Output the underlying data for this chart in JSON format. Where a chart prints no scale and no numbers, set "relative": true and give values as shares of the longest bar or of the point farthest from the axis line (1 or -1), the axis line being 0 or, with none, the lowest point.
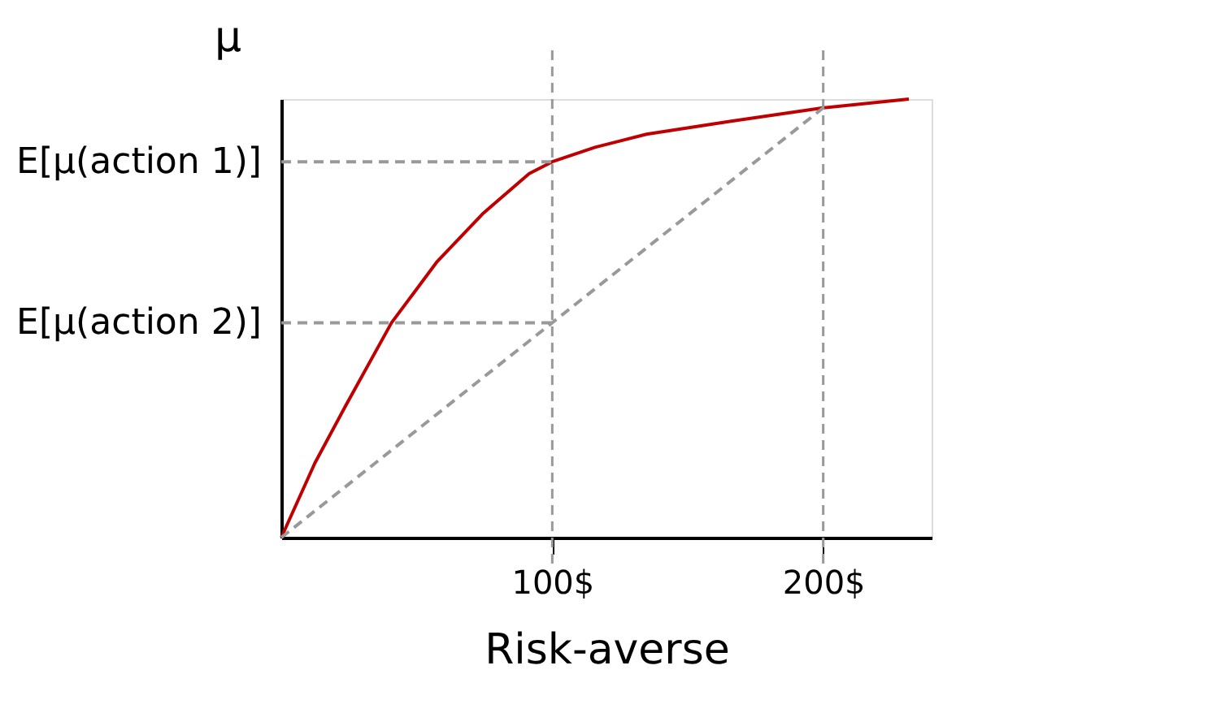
{
  "chart_data": {
    "type": "line",
    "xlabel": "Risk-averse",
    "ylabel": "μ",
    "relative": true,
    "xlim": [
      0,
      240
    ],
    "xticks": [
      {
        "value": 100,
        "label": "100$"
      },
      {
        "value": 200,
        "label": "200$"
      }
    ],
    "grid": false,
    "annotations": [
      {
        "text": "E[μ(action 1)]",
        "x": 0,
        "y": 0.857
      },
      {
        "text": "E[μ(action 2)]",
        "x": 0,
        "y": 0.49
      }
    ],
    "series": [
      {
        "color": "#c00000",
        "line_style": "solid",
        "x": [
          0,
          12.4,
          23.7,
          40.7,
          57.6,
          74.6,
          91.5,
          100,
          115.8,
          134.8,
          166.5,
          200,
          231.6
        ],
        "values": [
          0,
          0.17,
          0.3,
          0.49,
          0.63,
          0.74,
          0.83,
          0.857,
          0.89,
          0.92,
          0.95,
          0.98,
          1.0
        ]
      },
      {
        "color": "#999999",
        "line_style": "dashed",
        "x": [
          0,
          100
        ],
        "values": [
          0.857,
          0.857
        ]
      },
      {
        "color": "#999999",
        "line_style": "dashed",
        "x": [
          0,
          100
        ],
        "values": [
          0.49,
          0.49
        ]
      },
      {
        "color": "#999999",
        "line_style": "dashed",
        "x": [
          0,
          200
        ],
        "values": [
          0,
          0.98
        ]
      }
    ],
    "ref_lines": [
      {
        "axis": "x",
        "value": 100,
        "color": "#999999",
        "line_style": "dashed"
      },
      {
        "axis": "x",
        "value": 200,
        "color": "#999999",
        "line_style": "dashed"
      }
    ]
  }
}
